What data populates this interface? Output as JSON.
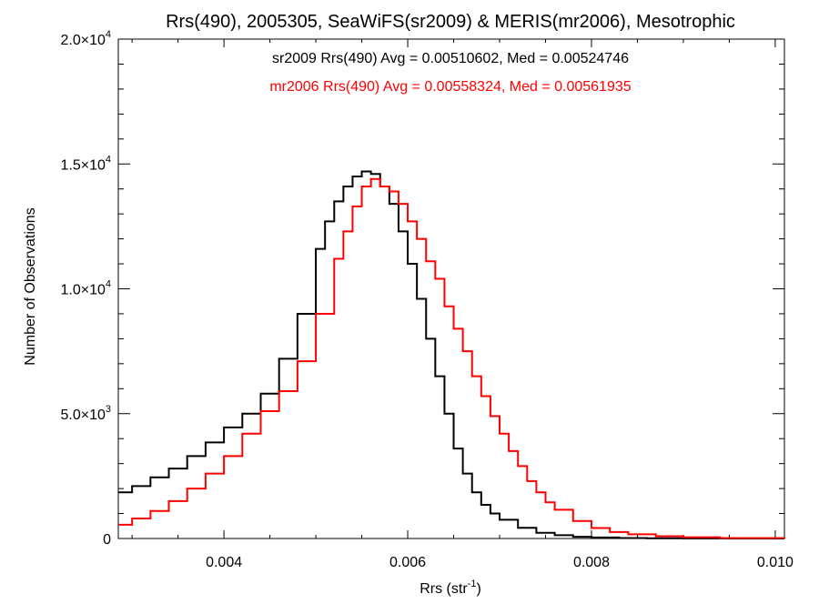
{
  "chart_data": {
    "type": "line",
    "title": "Rrs(490), 2005305, SeaWiFS(sr2009) & MERIS(mr2006), Mesotrophic",
    "xlabel_main": "Rrs (str",
    "xlabel_sup": "-1",
    "xlabel_tail": ")",
    "ylabel": "Number of Observations",
    "xlim": [
      0.00285,
      0.0101
    ],
    "ylim": [
      0,
      20000
    ],
    "x_ticks": [
      {
        "value": 0.004,
        "label": "0.004"
      },
      {
        "value": 0.006,
        "label": "0.006"
      },
      {
        "value": 0.008,
        "label": "0.008"
      },
      {
        "value": 0.01,
        "label": "0.010"
      }
    ],
    "y_ticks": [
      {
        "value": 0,
        "base": "0",
        "exp": ""
      },
      {
        "value": 5000,
        "base": "5.0×10",
        "exp": "3"
      },
      {
        "value": 10000,
        "base": "1.0×10",
        "exp": "4"
      },
      {
        "value": 15000,
        "base": "1.5×10",
        "exp": "4"
      },
      {
        "value": 20000,
        "base": "2.0×10",
        "exp": "4"
      }
    ],
    "annotations": [
      {
        "text": "sr2009 Rrs(490) Avg = 0.00510602, Med = 0.00524746",
        "color": "#000000"
      },
      {
        "text": "mr2006 Rrs(490) Avg = 0.00558324, Med = 0.00561935",
        "color": "#ff0000"
      }
    ],
    "series": [
      {
        "name": "sr2009",
        "color": "#000000",
        "x": [
          0.00285,
          0.003,
          0.0032,
          0.0034,
          0.0036,
          0.0038,
          0.004,
          0.0042,
          0.0044,
          0.0046,
          0.0048,
          0.005,
          0.0051,
          0.0052,
          0.0053,
          0.0054,
          0.0055,
          0.0056,
          0.0057,
          0.0058,
          0.0059,
          0.006,
          0.0061,
          0.0062,
          0.0063,
          0.0064,
          0.0065,
          0.0066,
          0.0067,
          0.0068,
          0.0069,
          0.007,
          0.0072,
          0.0074,
          0.0076,
          0.0078,
          0.008,
          0.0083,
          0.0086,
          0.009,
          0.0095,
          0.0101
        ],
        "y": [
          1850,
          2100,
          2450,
          2800,
          3300,
          3850,
          4450,
          5000,
          5800,
          7200,
          9000,
          11600,
          12700,
          13500,
          14100,
          14500,
          14700,
          14600,
          14100,
          13400,
          12300,
          11000,
          9600,
          8000,
          6500,
          5000,
          3600,
          2600,
          1850,
          1350,
          1000,
          750,
          430,
          230,
          130,
          70,
          40,
          20,
          10,
          5,
          2,
          0
        ]
      },
      {
        "name": "mr2006",
        "color": "#ff0000",
        "x": [
          0.00285,
          0.003,
          0.0032,
          0.0034,
          0.0036,
          0.0038,
          0.004,
          0.0042,
          0.0044,
          0.0046,
          0.0048,
          0.005,
          0.0052,
          0.0053,
          0.0054,
          0.0055,
          0.0056,
          0.0057,
          0.0058,
          0.0059,
          0.006,
          0.0061,
          0.0062,
          0.0063,
          0.0064,
          0.0065,
          0.0066,
          0.0067,
          0.0068,
          0.0069,
          0.007,
          0.0071,
          0.0072,
          0.0073,
          0.0074,
          0.0075,
          0.0076,
          0.0078,
          0.008,
          0.0082,
          0.0084,
          0.0087,
          0.009,
          0.0094,
          0.0101
        ],
        "y": [
          550,
          800,
          1100,
          1500,
          2000,
          2600,
          3300,
          4200,
          5100,
          5900,
          7100,
          9000,
          11200,
          12300,
          13300,
          14100,
          14400,
          14100,
          13900,
          13400,
          12700,
          12000,
          11100,
          10400,
          9300,
          8400,
          7500,
          6500,
          5700,
          4900,
          4200,
          3500,
          2900,
          2300,
          1850,
          1450,
          1150,
          700,
          420,
          260,
          170,
          90,
          50,
          20,
          0
        ]
      }
    ],
    "grid": false,
    "legend": "top-center"
  }
}
